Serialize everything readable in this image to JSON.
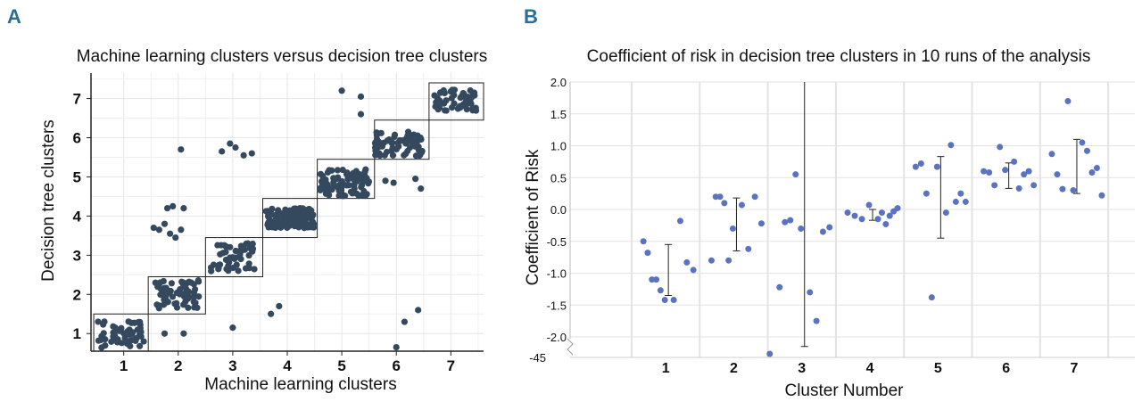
{
  "panels": {
    "a": "A",
    "b": "B"
  },
  "chart_data": [
    {
      "type": "scatter",
      "panel": "A",
      "title": "Machine learning clusters versus decision tree clusters",
      "xlabel": "Machine learning clusters",
      "ylabel": "Decision tree clusters",
      "xlim": [
        0.4,
        7.6
      ],
      "ylim": [
        0.55,
        7.65
      ],
      "xticks": [
        1,
        2,
        3,
        4,
        5,
        6,
        7
      ],
      "yticks": [
        1,
        2,
        3,
        4,
        5,
        6,
        7
      ],
      "grid": true,
      "point_color": "#34495e",
      "boxes": [
        {
          "x": [
            0.45,
            1.45
          ],
          "y": [
            0.55,
            1.5
          ]
        },
        {
          "x": [
            1.45,
            2.5
          ],
          "y": [
            1.5,
            2.45
          ]
        },
        {
          "x": [
            2.5,
            3.55
          ],
          "y": [
            2.45,
            3.45
          ]
        },
        {
          "x": [
            3.55,
            4.55
          ],
          "y": [
            3.45,
            4.45
          ]
        },
        {
          "x": [
            4.55,
            5.6
          ],
          "y": [
            4.45,
            5.45
          ]
        },
        {
          "x": [
            5.6,
            6.6
          ],
          "y": [
            5.45,
            6.45
          ]
        },
        {
          "x": [
            6.6,
            7.6
          ],
          "y": [
            6.45,
            7.4
          ]
        }
      ],
      "clusters": [
        {
          "cx": 0.95,
          "cy": 1.0,
          "n": 55,
          "sx": 0.42,
          "sy": 0.36
        },
        {
          "cx": 1.98,
          "cy": 2.0,
          "n": 60,
          "sx": 0.4,
          "sy": 0.36
        },
        {
          "cx": 3.0,
          "cy": 2.95,
          "n": 50,
          "sx": 0.4,
          "sy": 0.36
        },
        {
          "cx": 4.05,
          "cy": 3.95,
          "n": 150,
          "sx": 0.44,
          "sy": 0.26
        },
        {
          "cx": 5.05,
          "cy": 4.85,
          "n": 85,
          "sx": 0.45,
          "sy": 0.34
        },
        {
          "cx": 6.05,
          "cy": 5.85,
          "n": 70,
          "sx": 0.44,
          "sy": 0.32
        },
        {
          "cx": 7.1,
          "cy": 6.95,
          "n": 55,
          "sx": 0.4,
          "sy": 0.28
        }
      ],
      "outliers": [
        [
          1.55,
          3.7
        ],
        [
          1.65,
          3.65
        ],
        [
          1.75,
          3.8
        ],
        [
          1.8,
          4.2
        ],
        [
          1.9,
          4.25
        ],
        [
          2.1,
          4.2
        ],
        [
          1.85,
          3.55
        ],
        [
          2.05,
          3.65
        ],
        [
          1.95,
          3.45
        ],
        [
          2.05,
          5.7
        ],
        [
          2.8,
          5.65
        ],
        [
          2.95,
          5.85
        ],
        [
          3.05,
          5.75
        ],
        [
          3.2,
          5.55
        ],
        [
          3.35,
          5.6
        ],
        [
          1.75,
          1.0
        ],
        [
          2.1,
          1.0
        ],
        [
          3.0,
          1.15
        ],
        [
          3.7,
          1.5
        ],
        [
          3.85,
          1.7
        ],
        [
          5.0,
          7.2
        ],
        [
          5.35,
          7.05
        ],
        [
          5.35,
          6.6
        ],
        [
          6.0,
          0.65
        ],
        [
          6.15,
          1.3
        ],
        [
          6.4,
          1.6
        ],
        [
          5.8,
          4.9
        ],
        [
          5.95,
          4.85
        ],
        [
          6.35,
          4.95
        ],
        [
          6.45,
          4.7
        ]
      ]
    },
    {
      "type": "scatter",
      "panel": "B",
      "title": "Coefficient of risk in decision tree clusters in 10 runs of the analysis",
      "xlabel": "Cluster Number",
      "ylabel": "Coefficient of Risk",
      "xlim": [
        0.5,
        7.5
      ],
      "ylim": [
        -2.25,
        2.0
      ],
      "yticks": [
        "2.0",
        "1.5",
        "1.0",
        "0.5",
        "0.0",
        "-0.5",
        "-1.0",
        "-1.5",
        "-2.0"
      ],
      "axis_break_label": "-45",
      "categories": [
        "1",
        "2",
        "3",
        "4",
        "5",
        "6",
        "7"
      ],
      "grid": true,
      "point_color": "#5b72c0",
      "points": [
        [
          [
            -0.5,
            -0.68,
            -1.1,
            -1.1,
            -1.27,
            -1.42
          ],
          [
            -1.42,
            -0.18,
            -0.83,
            -0.95
          ]
        ],
        [
          [
            -0.8,
            0.2,
            0.2,
            0.1,
            -0.8,
            -0.3
          ],
          [
            0.07,
            -0.62,
            0.2,
            -0.22
          ]
        ],
        [
          [
            -1.22,
            -0.2,
            -0.17,
            0.55,
            -0.3
          ],
          [
            -1.3,
            -1.75,
            -0.35,
            -0.28
          ]
        ],
        [
          [
            -0.05,
            -0.1,
            -0.15,
            0.07
          ],
          [
            -0.15,
            -0.05,
            -0.23,
            -0.1,
            -0.03,
            0.02
          ]
        ],
        [
          [
            0.67,
            0.72,
            0.25,
            -1.38,
            0.67
          ],
          [
            -0.05,
            1.01,
            0.12,
            0.25,
            0.12
          ]
        ],
        [
          [
            0.6,
            0.58,
            0.38,
            0.98,
            0.62
          ],
          [
            0.75,
            0.33,
            0.55,
            0.6,
            0.38
          ]
        ],
        [
          [
            0.87,
            0.55,
            0.32,
            1.7,
            0.3
          ],
          [
            1.05,
            0.92,
            0.58,
            0.65,
            0.22
          ]
        ]
      ],
      "below_break_points": [
        {
          "cluster": 3,
          "offset": -0.45
        }
      ],
      "error_bars": [
        {
          "cluster": 1,
          "low": -1.35,
          "high": -0.55
        },
        {
          "cluster": 2,
          "low": -0.65,
          "high": 0.18
        },
        {
          "cluster": 3,
          "low": -2.15,
          "high": 2.0
        },
        {
          "cluster": 4,
          "low": -0.17,
          "high": 0.0
        },
        {
          "cluster": 5,
          "low": -0.45,
          "high": 0.83
        },
        {
          "cluster": 6,
          "low": 0.33,
          "high": 0.73
        },
        {
          "cluster": 7,
          "low": 0.25,
          "high": 1.1
        }
      ]
    }
  ]
}
